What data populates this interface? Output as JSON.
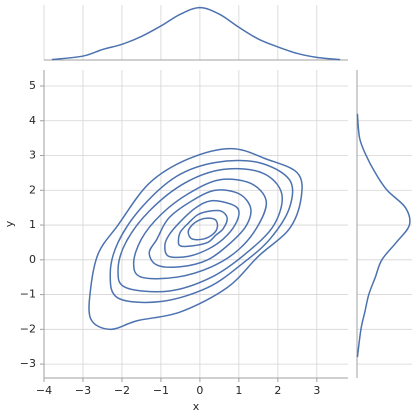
{
  "chart_data": [
    {
      "type": "contour",
      "xlabel": "x",
      "ylabel": "y",
      "color": "#4c72b0",
      "grid": true,
      "xlim": [
        -4,
        3.8
      ],
      "ylim": [
        -3.4,
        5.46
      ],
      "xticks": [
        {
          "value": -4,
          "label": "−4"
        },
        {
          "value": -3,
          "label": "−3"
        },
        {
          "value": -2,
          "label": "−2"
        },
        {
          "value": -1,
          "label": "−1"
        },
        0,
        1,
        2,
        3
      ],
      "yticks": [
        {
          "value": -3,
          "label": "−3"
        },
        {
          "value": -2,
          "label": "−2"
        },
        {
          "value": -1,
          "label": "−1"
        },
        0,
        1,
        2,
        3,
        4,
        5
      ],
      "contours": [
        {
          "x": [
            -2.3,
            -1.6,
            -0.5,
            0.7,
            1.5,
            2.3,
            2.6,
            2.5,
            1.7,
            0.8,
            -0.3,
            -1.3,
            -2.1,
            -2.6,
            -2.8,
            -2.8
          ],
          "y": [
            -2.0,
            -1.75,
            -1.5,
            -0.8,
            0.1,
            0.9,
            1.8,
            2.5,
            2.9,
            3.2,
            2.9,
            2.2,
            1.0,
            0.2,
            -0.8,
            -1.7
          ]
        },
        {
          "x": [
            -2.1,
            -1.0,
            0.2,
            1.1,
            1.8,
            2.3,
            2.3,
            1.5,
            0.4,
            -0.6,
            -1.5,
            -2.1,
            -2.3
          ],
          "y": [
            -1.1,
            -1.2,
            -0.8,
            -0.1,
            0.6,
            1.5,
            2.3,
            2.8,
            2.8,
            2.4,
            1.5,
            0.5,
            -0.4
          ]
        },
        {
          "x": [
            -1.9,
            -0.8,
            0.3,
            1.2,
            1.9,
            2.1,
            1.6,
            0.6,
            -0.4,
            -1.3,
            -1.9,
            -2.1
          ],
          "y": [
            -0.8,
            -0.9,
            -0.5,
            0.2,
            1.0,
            1.9,
            2.5,
            2.6,
            2.2,
            1.4,
            0.5,
            -0.3
          ]
        },
        {
          "x": [
            -1.5,
            -0.6,
            0.3,
            1.0,
            1.5,
            1.7,
            1.3,
            0.5,
            -0.3,
            -1.0,
            -1.5,
            -1.7
          ],
          "y": [
            -0.5,
            -0.5,
            -0.2,
            0.3,
            1.0,
            1.7,
            2.2,
            2.3,
            1.9,
            1.3,
            0.6,
            -0.1
          ]
        },
        {
          "x": [
            -1.1,
            -0.5,
            0.2,
            0.8,
            1.2,
            1.3,
            1.0,
            0.4,
            -0.2,
            -0.8,
            -1.1,
            -1.3
          ],
          "y": [
            -0.15,
            -0.2,
            0.0,
            0.5,
            1.0,
            1.5,
            1.9,
            2.0,
            1.7,
            1.2,
            0.6,
            0.2
          ]
        },
        {
          "x": [
            -0.8,
            -0.3,
            0.2,
            0.6,
            0.9,
            1.0,
            0.8,
            0.3,
            -0.1,
            -0.5,
            -0.8,
            -0.9
          ],
          "y": [
            0.1,
            0.1,
            0.3,
            0.6,
            1.0,
            1.4,
            1.6,
            1.7,
            1.5,
            1.1,
            0.7,
            0.4
          ]
        },
        {
          "x": [
            -0.5,
            -0.2,
            0.2,
            0.4,
            0.6,
            0.7,
            0.55,
            0.25,
            -0.05,
            -0.3,
            -0.5,
            -0.55
          ],
          "y": [
            0.4,
            0.4,
            0.5,
            0.7,
            0.9,
            1.2,
            1.4,
            1.4,
            1.3,
            1.05,
            0.8,
            0.55
          ]
        },
        {
          "x": [
            -0.2,
            0.1,
            0.35,
            0.45,
            0.4,
            0.2,
            0.0,
            -0.2,
            -0.3
          ],
          "y": [
            0.6,
            0.6,
            0.75,
            0.95,
            1.15,
            1.2,
            1.15,
            1.0,
            0.8
          ]
        }
      ]
    },
    {
      "type": "density",
      "orientation": "horizontal",
      "color": "#4c72b0",
      "ylim": [
        0,
        0.42
      ],
      "x": [
        -3.8,
        -3,
        -2.5,
        -2,
        -1.5,
        -1,
        -0.5,
        0,
        0.5,
        1,
        1.5,
        2,
        2.5,
        3,
        3.6
      ],
      "values": [
        0.003,
        0.03,
        0.08,
        0.12,
        0.18,
        0.26,
        0.35,
        0.4,
        0.35,
        0.25,
        0.16,
        0.1,
        0.05,
        0.02,
        0.003
      ]
    },
    {
      "type": "density",
      "orientation": "vertical",
      "color": "#4c72b0",
      "xlim": [
        0,
        0.42
      ],
      "y": [
        -2.8,
        -2,
        -1.5,
        -1,
        -0.5,
        0,
        0.5,
        1,
        1.5,
        2,
        2.5,
        3,
        3.5,
        4.2
      ],
      "values": [
        0.003,
        0.03,
        0.06,
        0.09,
        0.14,
        0.19,
        0.3,
        0.4,
        0.37,
        0.23,
        0.14,
        0.07,
        0.02,
        0.003
      ]
    }
  ]
}
